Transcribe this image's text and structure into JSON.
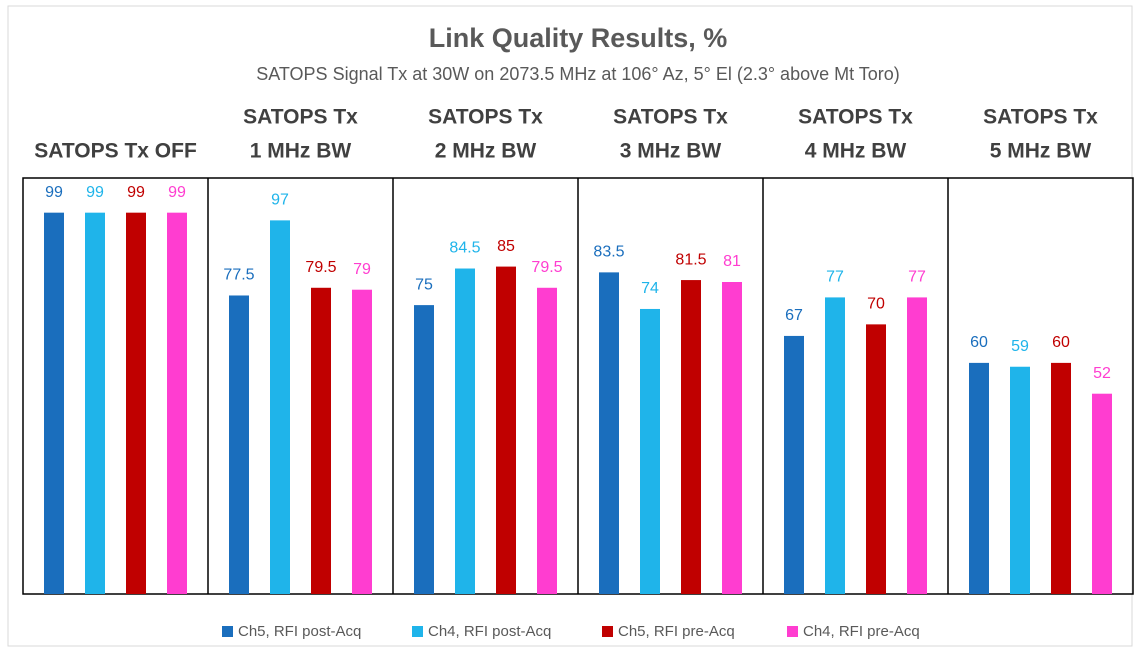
{
  "chart_data": {
    "type": "bar",
    "title": "Link Quality Results, %",
    "subtitle": "SATOPS Signal Tx at 30W on 2073.5 MHz at 106° Az, 5° El (2.3° above Mt Toro)",
    "categories": [
      [
        "SATOPS Tx OFF"
      ],
      [
        "SATOPS Tx",
        "1 MHz BW"
      ],
      [
        "SATOPS Tx",
        "2 MHz BW"
      ],
      [
        "SATOPS Tx",
        "3 MHz BW"
      ],
      [
        "SATOPS Tx",
        "4 MHz BW"
      ],
      [
        "SATOPS Tx",
        "5 MHz BW"
      ]
    ],
    "series": [
      {
        "name": "Ch5, RFI post-Acq",
        "color": "#1a6ebd",
        "values": [
          99,
          77.5,
          75,
          83.5,
          67,
          60
        ]
      },
      {
        "name": "Ch4, RFI post-Acq",
        "color": "#1fb4ea",
        "values": [
          99,
          97,
          84.5,
          74,
          77,
          59
        ]
      },
      {
        "name": "Ch5, RFI pre-Acq",
        "color": "#c00000",
        "values": [
          99,
          79.5,
          85,
          81.5,
          70,
          60
        ]
      },
      {
        "name": "Ch4, RFI pre-Acq",
        "color": "#ff3dd0",
        "values": [
          99,
          79,
          79.5,
          81,
          77,
          52
        ]
      }
    ],
    "ylim": [
      0,
      108
    ],
    "legend": "bottom"
  }
}
